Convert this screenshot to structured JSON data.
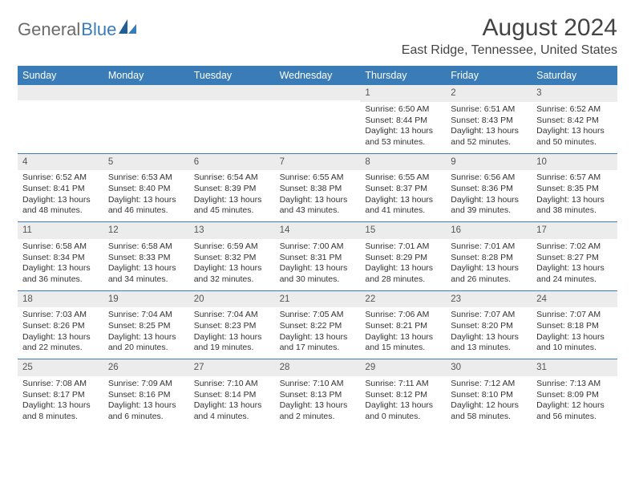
{
  "logo": {
    "word1": "General",
    "word2": "Blue"
  },
  "title": "August 2024",
  "location": "East Ridge, Tennessee, United States",
  "colors": {
    "header_bg": "#3a7cb8",
    "header_text": "#ffffff",
    "daynum_bg": "#ececec",
    "text": "#333333",
    "logo_gray": "#6b6b6b",
    "logo_blue": "#3a7cb8"
  },
  "typography": {
    "title_fontsize": 30,
    "location_fontsize": 16,
    "header_fontsize": 12.5,
    "body_fontsize": 10.5
  },
  "day_names": [
    "Sunday",
    "Monday",
    "Tuesday",
    "Wednesday",
    "Thursday",
    "Friday",
    "Saturday"
  ],
  "weeks": [
    [
      {
        "n": "",
        "sr": "",
        "ss": "",
        "dl": ""
      },
      {
        "n": "",
        "sr": "",
        "ss": "",
        "dl": ""
      },
      {
        "n": "",
        "sr": "",
        "ss": "",
        "dl": ""
      },
      {
        "n": "",
        "sr": "",
        "ss": "",
        "dl": ""
      },
      {
        "n": "1",
        "sr": "Sunrise: 6:50 AM",
        "ss": "Sunset: 8:44 PM",
        "dl": "Daylight: 13 hours and 53 minutes."
      },
      {
        "n": "2",
        "sr": "Sunrise: 6:51 AM",
        "ss": "Sunset: 8:43 PM",
        "dl": "Daylight: 13 hours and 52 minutes."
      },
      {
        "n": "3",
        "sr": "Sunrise: 6:52 AM",
        "ss": "Sunset: 8:42 PM",
        "dl": "Daylight: 13 hours and 50 minutes."
      }
    ],
    [
      {
        "n": "4",
        "sr": "Sunrise: 6:52 AM",
        "ss": "Sunset: 8:41 PM",
        "dl": "Daylight: 13 hours and 48 minutes."
      },
      {
        "n": "5",
        "sr": "Sunrise: 6:53 AM",
        "ss": "Sunset: 8:40 PM",
        "dl": "Daylight: 13 hours and 46 minutes."
      },
      {
        "n": "6",
        "sr": "Sunrise: 6:54 AM",
        "ss": "Sunset: 8:39 PM",
        "dl": "Daylight: 13 hours and 45 minutes."
      },
      {
        "n": "7",
        "sr": "Sunrise: 6:55 AM",
        "ss": "Sunset: 8:38 PM",
        "dl": "Daylight: 13 hours and 43 minutes."
      },
      {
        "n": "8",
        "sr": "Sunrise: 6:55 AM",
        "ss": "Sunset: 8:37 PM",
        "dl": "Daylight: 13 hours and 41 minutes."
      },
      {
        "n": "9",
        "sr": "Sunrise: 6:56 AM",
        "ss": "Sunset: 8:36 PM",
        "dl": "Daylight: 13 hours and 39 minutes."
      },
      {
        "n": "10",
        "sr": "Sunrise: 6:57 AM",
        "ss": "Sunset: 8:35 PM",
        "dl": "Daylight: 13 hours and 38 minutes."
      }
    ],
    [
      {
        "n": "11",
        "sr": "Sunrise: 6:58 AM",
        "ss": "Sunset: 8:34 PM",
        "dl": "Daylight: 13 hours and 36 minutes."
      },
      {
        "n": "12",
        "sr": "Sunrise: 6:58 AM",
        "ss": "Sunset: 8:33 PM",
        "dl": "Daylight: 13 hours and 34 minutes."
      },
      {
        "n": "13",
        "sr": "Sunrise: 6:59 AM",
        "ss": "Sunset: 8:32 PM",
        "dl": "Daylight: 13 hours and 32 minutes."
      },
      {
        "n": "14",
        "sr": "Sunrise: 7:00 AM",
        "ss": "Sunset: 8:31 PM",
        "dl": "Daylight: 13 hours and 30 minutes."
      },
      {
        "n": "15",
        "sr": "Sunrise: 7:01 AM",
        "ss": "Sunset: 8:29 PM",
        "dl": "Daylight: 13 hours and 28 minutes."
      },
      {
        "n": "16",
        "sr": "Sunrise: 7:01 AM",
        "ss": "Sunset: 8:28 PM",
        "dl": "Daylight: 13 hours and 26 minutes."
      },
      {
        "n": "17",
        "sr": "Sunrise: 7:02 AM",
        "ss": "Sunset: 8:27 PM",
        "dl": "Daylight: 13 hours and 24 minutes."
      }
    ],
    [
      {
        "n": "18",
        "sr": "Sunrise: 7:03 AM",
        "ss": "Sunset: 8:26 PM",
        "dl": "Daylight: 13 hours and 22 minutes."
      },
      {
        "n": "19",
        "sr": "Sunrise: 7:04 AM",
        "ss": "Sunset: 8:25 PM",
        "dl": "Daylight: 13 hours and 20 minutes."
      },
      {
        "n": "20",
        "sr": "Sunrise: 7:04 AM",
        "ss": "Sunset: 8:23 PM",
        "dl": "Daylight: 13 hours and 19 minutes."
      },
      {
        "n": "21",
        "sr": "Sunrise: 7:05 AM",
        "ss": "Sunset: 8:22 PM",
        "dl": "Daylight: 13 hours and 17 minutes."
      },
      {
        "n": "22",
        "sr": "Sunrise: 7:06 AM",
        "ss": "Sunset: 8:21 PM",
        "dl": "Daylight: 13 hours and 15 minutes."
      },
      {
        "n": "23",
        "sr": "Sunrise: 7:07 AM",
        "ss": "Sunset: 8:20 PM",
        "dl": "Daylight: 13 hours and 13 minutes."
      },
      {
        "n": "24",
        "sr": "Sunrise: 7:07 AM",
        "ss": "Sunset: 8:18 PM",
        "dl": "Daylight: 13 hours and 10 minutes."
      }
    ],
    [
      {
        "n": "25",
        "sr": "Sunrise: 7:08 AM",
        "ss": "Sunset: 8:17 PM",
        "dl": "Daylight: 13 hours and 8 minutes."
      },
      {
        "n": "26",
        "sr": "Sunrise: 7:09 AM",
        "ss": "Sunset: 8:16 PM",
        "dl": "Daylight: 13 hours and 6 minutes."
      },
      {
        "n": "27",
        "sr": "Sunrise: 7:10 AM",
        "ss": "Sunset: 8:14 PM",
        "dl": "Daylight: 13 hours and 4 minutes."
      },
      {
        "n": "28",
        "sr": "Sunrise: 7:10 AM",
        "ss": "Sunset: 8:13 PM",
        "dl": "Daylight: 13 hours and 2 minutes."
      },
      {
        "n": "29",
        "sr": "Sunrise: 7:11 AM",
        "ss": "Sunset: 8:12 PM",
        "dl": "Daylight: 13 hours and 0 minutes."
      },
      {
        "n": "30",
        "sr": "Sunrise: 7:12 AM",
        "ss": "Sunset: 8:10 PM",
        "dl": "Daylight: 12 hours and 58 minutes."
      },
      {
        "n": "31",
        "sr": "Sunrise: 7:13 AM",
        "ss": "Sunset: 8:09 PM",
        "dl": "Daylight: 12 hours and 56 minutes."
      }
    ]
  ]
}
